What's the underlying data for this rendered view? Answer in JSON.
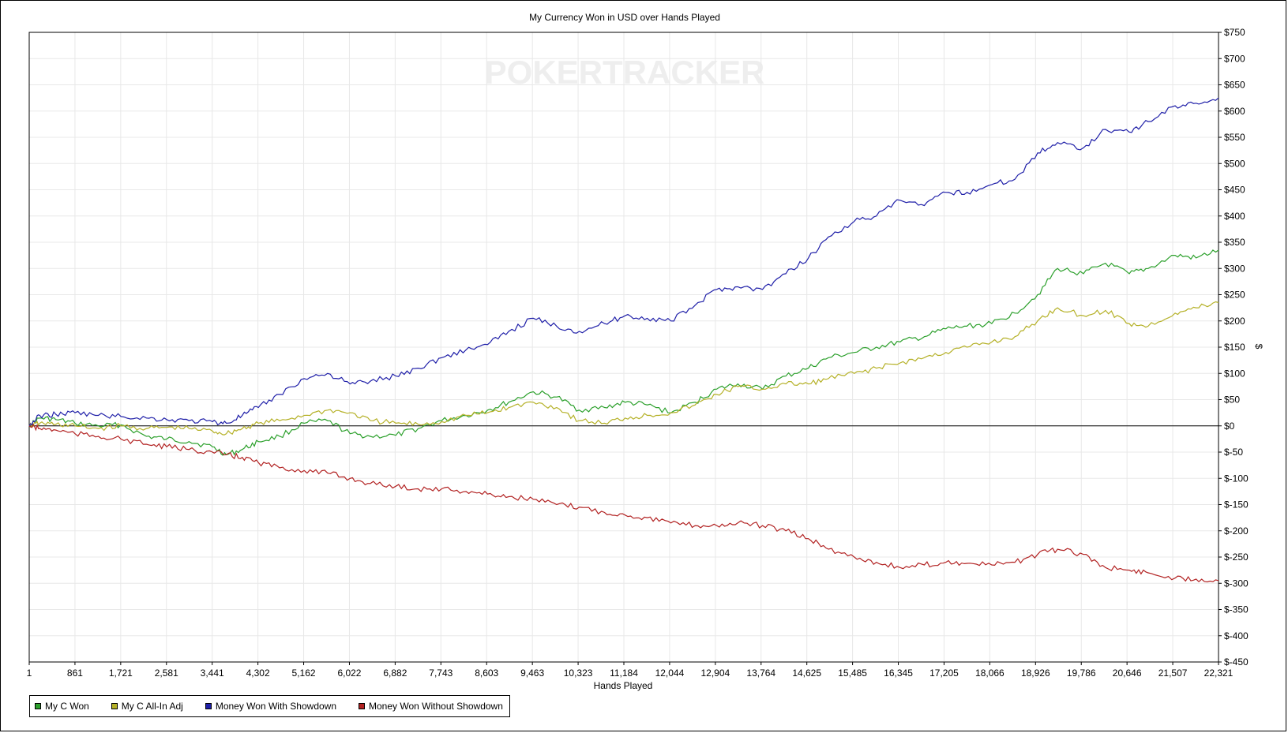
{
  "chart_data": {
    "type": "line",
    "title": "My Currency Won in USD over Hands Played",
    "xlabel": "Hands Played",
    "ylabel": "$",
    "xlim": [
      1,
      22321
    ],
    "ylim": [
      -450,
      750
    ],
    "x_ticks": [
      "1",
      "861",
      "1,721",
      "2,581",
      "3,441",
      "4,302",
      "5,162",
      "6,022",
      "6,882",
      "7,743",
      "8,603",
      "9,463",
      "10,323",
      "11,184",
      "12,044",
      "12,904",
      "13,764",
      "14,625",
      "15,485",
      "16,345",
      "17,205",
      "18,066",
      "18,926",
      "19,786",
      "20,646",
      "21,507",
      "22,321"
    ],
    "y_ticks": [
      "$750",
      "$700",
      "$650",
      "$600",
      "$550",
      "$500",
      "$450",
      "$400",
      "$350",
      "$300",
      "$250",
      "$200",
      "$150",
      "$100",
      "$50",
      "$0",
      "$-50",
      "$-100",
      "$-150",
      "$-200",
      "$-250",
      "$-300",
      "$-350",
      "$-400",
      "$-450"
    ],
    "y_tick_values": [
      750,
      700,
      650,
      600,
      550,
      500,
      450,
      400,
      350,
      300,
      250,
      200,
      150,
      100,
      50,
      0,
      -50,
      -100,
      -150,
      -200,
      -250,
      -300,
      -350,
      -400,
      -450
    ],
    "grid": true,
    "legend_position": "bottom-left",
    "watermark": "POKERTRACKER",
    "series": [
      {
        "name": "My C Won",
        "color": "#2ca02c",
        "x": [
          1,
          200,
          500,
          861,
          1300,
          1721,
          2200,
          2581,
          3000,
          3441,
          3700,
          4000,
          4302,
          4700,
          5162,
          5600,
          6022,
          6400,
          6882,
          7300,
          7743,
          8200,
          8603,
          9000,
          9463,
          9900,
          10323,
          10800,
          11184,
          11600,
          12044,
          12500,
          12904,
          13300,
          13764,
          14200,
          14625,
          15000,
          15485,
          15900,
          16345,
          16800,
          17205,
          17600,
          18066,
          18500,
          18926,
          19300,
          19786,
          20200,
          20646,
          21000,
          21507,
          21900,
          22321
        ],
        "values": [
          0,
          15,
          12,
          5,
          0,
          2,
          -20,
          -25,
          -30,
          -40,
          -55,
          -45,
          -30,
          -20,
          5,
          10,
          -15,
          -20,
          -18,
          -5,
          10,
          20,
          30,
          45,
          65,
          55,
          30,
          35,
          45,
          40,
          25,
          45,
          70,
          80,
          70,
          95,
          110,
          130,
          140,
          150,
          160,
          170,
          185,
          190,
          195,
          215,
          250,
          300,
          290,
          310,
          290,
          300,
          325,
          320,
          335
        ]
      },
      {
        "name": "My C All-In Adj",
        "color": "#b5b128",
        "x": [
          1,
          200,
          500,
          861,
          1300,
          1721,
          2200,
          2581,
          3000,
          3441,
          3700,
          4000,
          4302,
          4700,
          5162,
          5600,
          6022,
          6400,
          6882,
          7300,
          7743,
          8200,
          8603,
          9000,
          9463,
          9900,
          10323,
          10800,
          11184,
          11600,
          12044,
          12500,
          12904,
          13300,
          13764,
          14200,
          14625,
          15000,
          15485,
          15900,
          16345,
          16800,
          17205,
          17600,
          18066,
          18500,
          18926,
          19300,
          19786,
          20200,
          20646,
          21000,
          21507,
          21900,
          22321
        ],
        "values": [
          0,
          5,
          3,
          0,
          -5,
          0,
          -5,
          -3,
          -5,
          -10,
          -15,
          -5,
          5,
          10,
          20,
          30,
          25,
          10,
          5,
          3,
          8,
          20,
          25,
          35,
          45,
          35,
          10,
          5,
          15,
          20,
          25,
          40,
          60,
          75,
          70,
          80,
          80,
          90,
          100,
          110,
          120,
          130,
          140,
          150,
          160,
          170,
          200,
          225,
          210,
          220,
          195,
          190,
          215,
          225,
          235
        ]
      },
      {
        "name": "Money Won With Showdown",
        "color": "#1f1fa8",
        "x": [
          1,
          200,
          500,
          861,
          1300,
          1721,
          2200,
          2581,
          3000,
          3441,
          3700,
          4000,
          4302,
          4700,
          5162,
          5600,
          6022,
          6400,
          6882,
          7300,
          7743,
          8200,
          8603,
          9000,
          9463,
          9900,
          10323,
          10800,
          11184,
          11600,
          12044,
          12500,
          12904,
          13300,
          13764,
          14200,
          14625,
          15000,
          15485,
          15900,
          16345,
          16800,
          17205,
          17600,
          18066,
          18500,
          18926,
          19300,
          19786,
          20200,
          20646,
          21000,
          21507,
          21900,
          22321
        ],
        "values": [
          0,
          20,
          22,
          25,
          20,
          18,
          15,
          12,
          10,
          8,
          5,
          20,
          35,
          60,
          90,
          100,
          80,
          85,
          95,
          110,
          130,
          145,
          155,
          180,
          205,
          190,
          180,
          195,
          210,
          205,
          200,
          230,
          260,
          265,
          260,
          290,
          320,
          360,
          390,
          400,
          430,
          420,
          445,
          445,
          460,
          470,
          520,
          540,
          530,
          565,
          560,
          580,
          610,
          615,
          625
        ]
      },
      {
        "name": "Money Won Without Showdown",
        "color": "#b22222",
        "x": [
          1,
          200,
          500,
          861,
          1300,
          1721,
          2200,
          2581,
          3000,
          3441,
          3700,
          4000,
          4302,
          4700,
          5162,
          5600,
          6022,
          6400,
          6882,
          7300,
          7743,
          8200,
          8603,
          9000,
          9463,
          9900,
          10323,
          10800,
          11184,
          11600,
          12044,
          12500,
          12904,
          13300,
          13764,
          14200,
          14625,
          15000,
          15485,
          15900,
          16345,
          16800,
          17205,
          17600,
          18066,
          18500,
          18926,
          19300,
          19786,
          20200,
          20646,
          21000,
          21507,
          21900,
          22321
        ],
        "values": [
          0,
          -5,
          -8,
          -15,
          -20,
          -25,
          -35,
          -40,
          -45,
          -50,
          -55,
          -60,
          -70,
          -80,
          -85,
          -90,
          -100,
          -110,
          -115,
          -120,
          -120,
          -125,
          -130,
          -135,
          -140,
          -150,
          -155,
          -165,
          -170,
          -175,
          -185,
          -190,
          -190,
          -185,
          -190,
          -200,
          -215,
          -235,
          -250,
          -260,
          -270,
          -265,
          -260,
          -262,
          -265,
          -260,
          -245,
          -235,
          -245,
          -270,
          -275,
          -280,
          -290,
          -292,
          -295
        ]
      }
    ]
  }
}
